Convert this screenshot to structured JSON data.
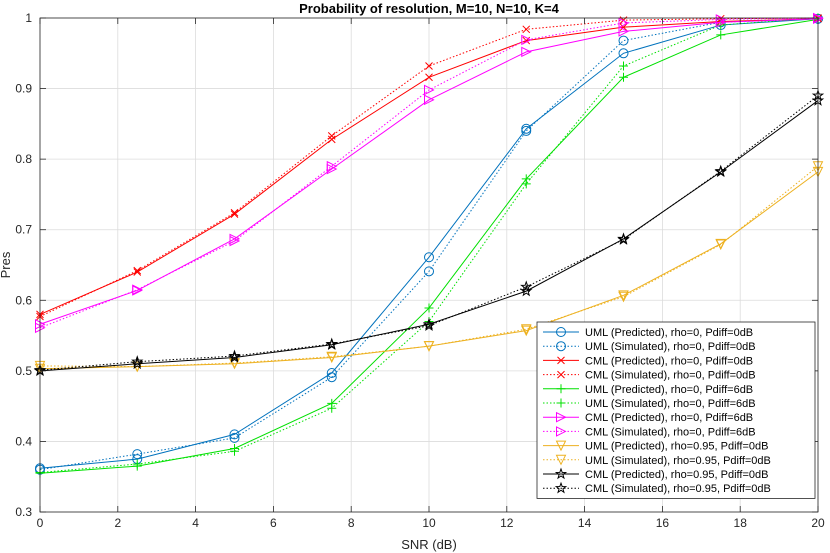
{
  "chart_data": {
    "type": "line",
    "title": "Probability of resolution, M=10, N=10, K=4",
    "xlabel": "SNR (dB)",
    "ylabel": "Pres",
    "xlim": [
      0,
      20
    ],
    "ylim": [
      0.3,
      1
    ],
    "xticks": [
      "0",
      "2",
      "4",
      "6",
      "8",
      "10",
      "12",
      "14",
      "16",
      "18",
      "20"
    ],
    "yticks": [
      "0.3",
      "0.4",
      "0.5",
      "0.6",
      "0.7",
      "0.8",
      "0.9",
      "1"
    ],
    "grid": true,
    "legend_position": "bottom-right",
    "x": [
      0,
      2.5,
      5,
      7.5,
      10,
      12.5,
      15,
      17.5,
      20
    ],
    "series": [
      {
        "name": "UML (Predicted), rho=0, Pdiff=0dB",
        "color": "#0072BD",
        "marker": "circle",
        "dash": "solid",
        "values": [
          0.362,
          0.375,
          0.41,
          0.497,
          0.661,
          0.843,
          0.95,
          0.99,
          0.999
        ]
      },
      {
        "name": "UML (Simulated), rho=0, Pdiff=0dB",
        "color": "#0072BD",
        "marker": "circle",
        "dash": "dotted",
        "values": [
          0.36,
          0.382,
          0.405,
          0.491,
          0.641,
          0.84,
          0.968,
          0.994,
          0.999
        ]
      },
      {
        "name": "CML (Predicted), rho=0, Pdiff=0dB",
        "color": "#FF0000",
        "marker": "x",
        "dash": "solid",
        "values": [
          0.58,
          0.64,
          0.722,
          0.828,
          0.916,
          0.968,
          0.987,
          0.995,
          0.999
        ]
      },
      {
        "name": "CML (Simulated), rho=0, Pdiff=0dB",
        "color": "#FF0000",
        "marker": "x",
        "dash": "dotted",
        "values": [
          0.577,
          0.642,
          0.724,
          0.833,
          0.932,
          0.984,
          0.997,
          0.999,
          1.0
        ]
      },
      {
        "name": "UML (Predicted), rho=0, Pdiff=6dB",
        "color": "#00E000",
        "marker": "plus",
        "dash": "solid",
        "values": [
          0.355,
          0.365,
          0.39,
          0.454,
          0.589,
          0.772,
          0.916,
          0.976,
          0.998
        ]
      },
      {
        "name": "UML (Simulated), rho=0, Pdiff=6dB",
        "color": "#00E000",
        "marker": "plus",
        "dash": "dotted",
        "values": [
          0.356,
          0.368,
          0.386,
          0.447,
          0.57,
          0.765,
          0.932,
          0.99,
          1.0
        ]
      },
      {
        "name": "CML (Predicted), rho=0, Pdiff=6dB",
        "color": "#FF00FF",
        "marker": "triangle-right",
        "dash": "solid",
        "values": [
          0.566,
          0.614,
          0.687,
          0.786,
          0.884,
          0.952,
          0.981,
          0.994,
          0.999
        ]
      },
      {
        "name": "CML (Simulated), rho=0, Pdiff=6dB",
        "color": "#FF00FF",
        "marker": "triangle-right",
        "dash": "dotted",
        "values": [
          0.561,
          0.615,
          0.684,
          0.79,
          0.898,
          0.969,
          0.993,
          0.998,
          1.0
        ]
      },
      {
        "name": "UML (Predicted), rho=0.95, Pdiff=0dB",
        "color": "#EDB120",
        "marker": "triangle-down",
        "dash": "solid",
        "values": [
          0.503,
          0.506,
          0.51,
          0.519,
          0.535,
          0.557,
          0.607,
          0.68,
          0.782
        ]
      },
      {
        "name": "UML (Simulated), rho=0.95, Pdiff=0dB",
        "color": "#EDB120",
        "marker": "triangle-down",
        "dash": "dotted",
        "values": [
          0.507,
          0.506,
          0.511,
          0.52,
          0.535,
          0.559,
          0.605,
          0.679,
          0.79
        ]
      },
      {
        "name": "CML (Predicted), rho=0.95, Pdiff=0dB",
        "color": "#000000",
        "marker": "star",
        "dash": "solid",
        "values": [
          0.5,
          0.51,
          0.519,
          0.537,
          0.566,
          0.613,
          0.687,
          0.782,
          0.883
        ]
      },
      {
        "name": "CML (Simulated), rho=0.95, Pdiff=0dB",
        "color": "#000000",
        "marker": "star",
        "dash": "dotted",
        "values": [
          0.501,
          0.513,
          0.521,
          0.538,
          0.564,
          0.619,
          0.686,
          0.783,
          0.89
        ]
      }
    ]
  }
}
